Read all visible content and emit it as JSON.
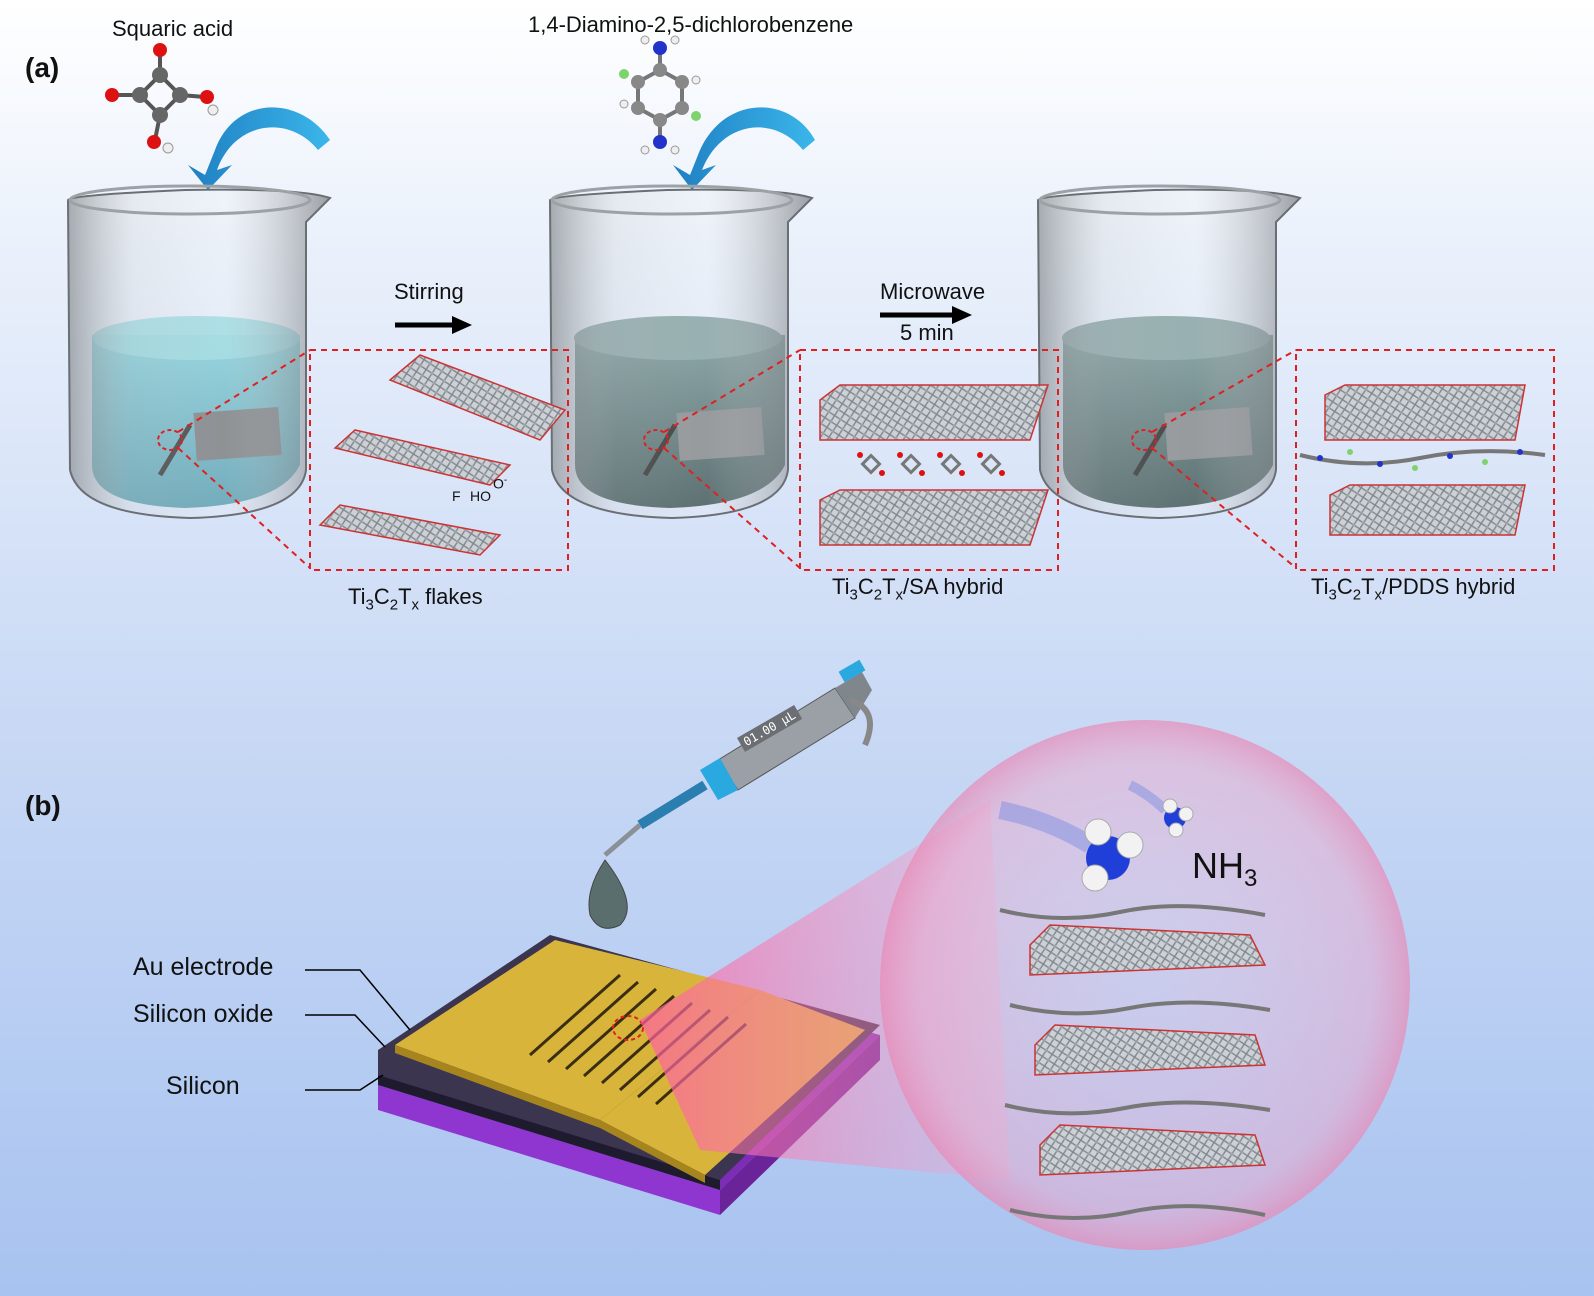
{
  "panels": {
    "a": "(a)",
    "b": "(b)"
  },
  "reagents": {
    "squaric_acid": "Squaric acid",
    "diamine": "1,4-Diamino-2,5-dichlorobenzene"
  },
  "steps": {
    "stirring": "Stirring",
    "microwave": "Microwave",
    "microwave_time": "5 min"
  },
  "hybrids": {
    "flakes": {
      "p1": "Ti",
      "s1": "3",
      "p2": "C",
      "s2": "2",
      "p3": "T",
      "s3": "x",
      "p4": " flakes"
    },
    "sa": {
      "p1": "Ti",
      "s1": "3",
      "p2": "C",
      "s2": "2",
      "p3": "T",
      "s3": "x",
      "p4": "/SA hybrid"
    },
    "pdds": {
      "p1": "Ti",
      "s1": "3",
      "p2": "C",
      "s2": "2",
      "p3": "T",
      "s3": "x",
      "p4": "/PDDS hybrid"
    }
  },
  "functional_groups": {
    "f": "F",
    "ho": "HO",
    "o": "O",
    "minus": "-"
  },
  "pipette_display": "01.00 μL",
  "device_layers": {
    "au": "Au electrode",
    "sio2": "Silicon oxide",
    "si": "Silicon"
  },
  "gas": {
    "base": "NH",
    "sub": "3"
  },
  "colors": {
    "arrow_blue": "#2aa8e0",
    "dash_red": "#e02020",
    "gold": "#d9b43a",
    "purple": "#8a2fc8",
    "water": "#6fc9d6",
    "pink": "#f29ac0"
  }
}
